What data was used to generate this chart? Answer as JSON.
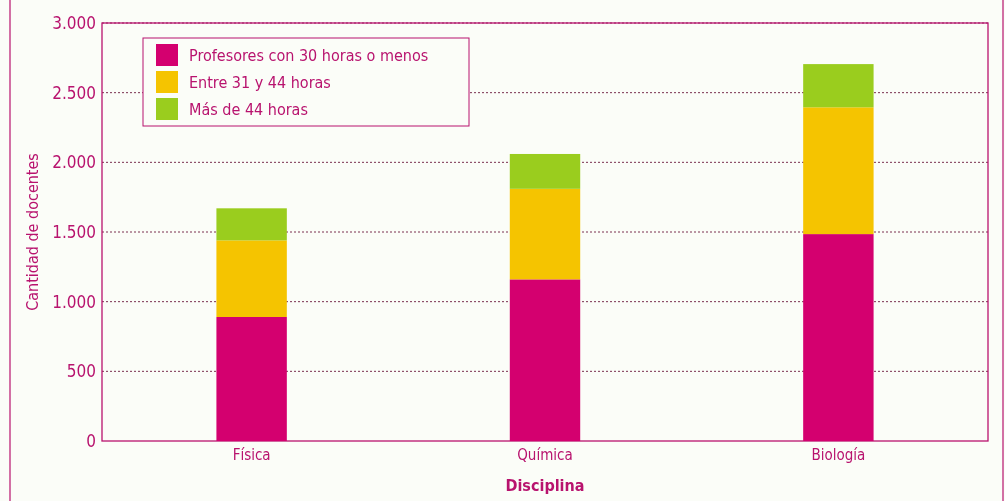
{
  "chart_data": {
    "type": "bar",
    "stacked": true,
    "xlabel": "Disciplina",
    "ylabel": "Cantidad de docentes",
    "categories": [
      "Física",
      "Química",
      "Biología"
    ],
    "series": [
      {
        "name": "Profesores con 30 horas o menos",
        "color": "#d4006f",
        "values": [
          890,
          1160,
          1485
        ]
      },
      {
        "name": "Entre 31 y 44 horas",
        "color": "#f5c400",
        "values": [
          550,
          650,
          910
        ]
      },
      {
        "name": "Más de 44 horas",
        "color": "#9acd1e",
        "values": [
          230,
          250,
          310
        ]
      }
    ],
    "ylim": [
      0,
      3000
    ],
    "yticks": [
      0,
      500,
      {
        "value": 1000,
        "label": "1.000"
      },
      {
        "value": 1500,
        "label": "1.500"
      },
      {
        "value": 2000,
        "label": "2.000"
      },
      {
        "value": 2500,
        "label": "2.500"
      },
      {
        "value": 3000,
        "label": "3.000"
      }
    ],
    "grid": "y",
    "legend": "top left"
  }
}
